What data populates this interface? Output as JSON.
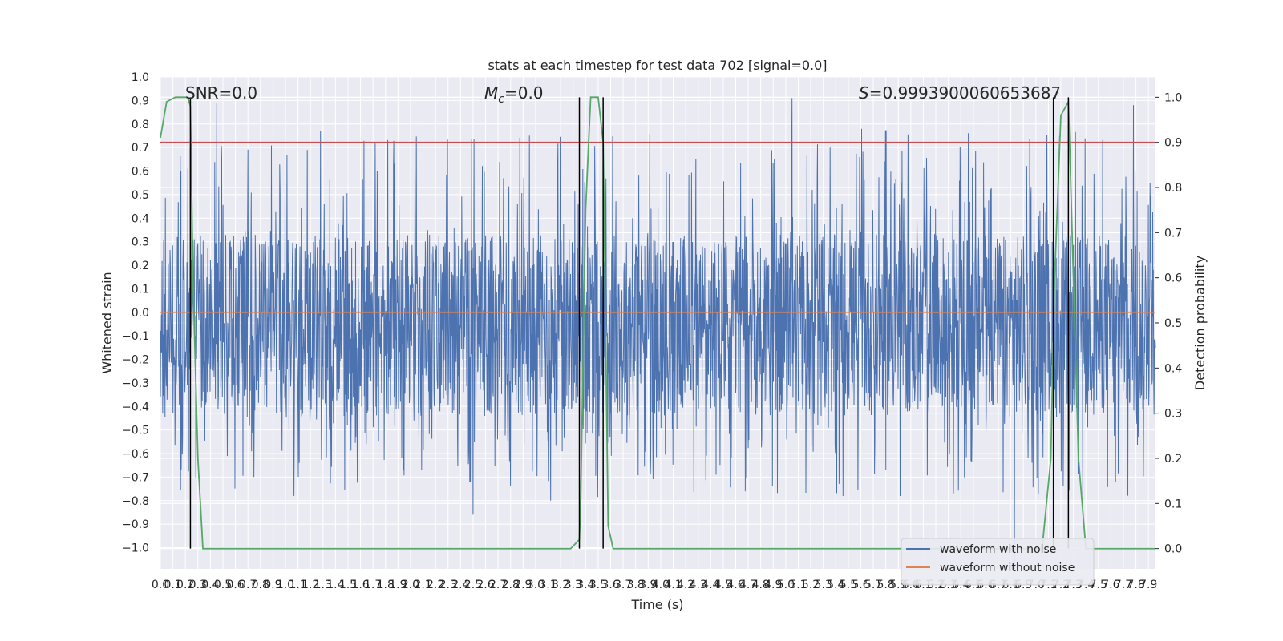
{
  "chart_data": {
    "type": "line",
    "title": "stats at each timestep for test data 702 [signal=0.0]",
    "xlabel": "Time (s)",
    "ylabel": "Whitened strain",
    "y2label": "Detection probability",
    "xlim": [
      0.0,
      7.95
    ],
    "ylim": [
      -1.09,
      1.0
    ],
    "y2lim": [
      -0.045,
      1.045
    ],
    "x_ticks": [
      "0.0",
      "0.1",
      "0.2",
      "0.3",
      "0.4",
      "0.5",
      "0.6",
      "0.7",
      "0.8",
      "0.9",
      "1.0",
      "1.1",
      "1.2",
      "1.3",
      "1.4",
      "1.5",
      "1.6",
      "1.7",
      "1.8",
      "1.9",
      "2.0",
      "2.1",
      "2.2",
      "2.3",
      "2.4",
      "2.5",
      "2.6",
      "2.7",
      "2.8",
      "2.9",
      "3.0",
      "3.1",
      "3.2",
      "3.3",
      "3.4",
      "3.5",
      "3.6",
      "3.7",
      "3.8",
      "3.9",
      "4.0",
      "4.1",
      "4.2",
      "4.3",
      "4.4",
      "4.5",
      "4.6",
      "4.7",
      "4.8",
      "4.9",
      "5.0",
      "5.1",
      "5.2",
      "5.3",
      "5.4",
      "5.5",
      "5.6",
      "5.7",
      "5.8",
      "5.9",
      "6.0",
      "6.1",
      "6.2",
      "6.3",
      "6.4",
      "6.5",
      "6.6",
      "6.7",
      "6.8",
      "6.9",
      "7.0",
      "7.1",
      "7.2",
      "7.3",
      "7.4",
      "7.5",
      "7.6",
      "7.7",
      "7.8",
      "7.9"
    ],
    "y_ticks": [
      "1.0",
      "0.9",
      "0.8",
      "0.7",
      "0.6",
      "0.5",
      "0.4",
      "0.3",
      "0.2",
      "0.1",
      "0.0",
      "−0.1",
      "−0.2",
      "−0.3",
      "−0.4",
      "−0.5",
      "−0.6",
      "−0.7",
      "−0.8",
      "−0.9",
      "−1.0"
    ],
    "y_tick_values": [
      1.0,
      0.9,
      0.8,
      0.7,
      0.6,
      0.5,
      0.4,
      0.3,
      0.2,
      0.1,
      0.0,
      -0.1,
      -0.2,
      -0.3,
      -0.4,
      -0.5,
      -0.6,
      -0.7,
      -0.8,
      -0.9,
      -1.0
    ],
    "y2_ticks": [
      "1.0",
      "0.9",
      "0.8",
      "0.7",
      "0.6",
      "0.5",
      "0.4",
      "0.3",
      "0.2",
      "0.1",
      "0.0"
    ],
    "y2_tick_values": [
      1.0,
      0.9,
      0.8,
      0.7,
      0.6,
      0.5,
      0.4,
      0.3,
      0.2,
      0.1,
      0.0
    ],
    "grid": true,
    "legend_position": "lower-right",
    "annotations": {
      "snr": "SNR=0.0",
      "mc": "=0.0",
      "s": "=0.9993900060653687"
    },
    "noise_waveform": {
      "name": "waveform with noise",
      "color": "#4c72b0",
      "typical_range": [
        -0.44,
        0.33
      ],
      "extremes_sample": [
        {
          "x": 0.22,
          "y": 0.61
        },
        {
          "x": 0.45,
          "y": 0.89
        },
        {
          "x": 1.28,
          "y": 0.77
        },
        {
          "x": 2.5,
          "y": -0.86
        },
        {
          "x": 3.12,
          "y": -0.8
        },
        {
          "x": 5.05,
          "y": 0.91
        },
        {
          "x": 6.83,
          "y": -1.09
        },
        {
          "x": 7.78,
          "y": 0.88
        }
      ]
    },
    "clean_waveform": {
      "name": "waveform without noise",
      "color": "#dd8452",
      "value": 0.0
    },
    "detection_probability": {
      "color": "#55a868",
      "x": [
        0.0,
        0.05,
        0.12,
        0.22,
        0.24,
        0.26,
        0.3,
        0.34,
        0.38,
        3.28,
        3.35,
        3.36,
        3.4,
        3.44,
        3.5,
        3.54,
        3.58,
        3.62,
        7.05,
        7.12,
        7.15,
        7.2,
        7.26,
        7.3,
        7.34,
        7.4,
        7.95
      ],
      "y": [
        0.91,
        0.99,
        1.0,
        1.0,
        0.98,
        0.6,
        0.2,
        0.0,
        0.0,
        0.0,
        0.02,
        0.1,
        0.75,
        1.0,
        1.0,
        0.9,
        0.05,
        0.0,
        0.0,
        0.2,
        0.6,
        0.96,
        0.99,
        0.6,
        0.2,
        0.0,
        0.0
      ]
    },
    "threshold": {
      "color": "#c44e52",
      "value": 0.9
    },
    "marker_lines_x": [
      0.24,
      3.35,
      3.54,
      7.14,
      7.26
    ],
    "marker_line_color": "#000000"
  }
}
